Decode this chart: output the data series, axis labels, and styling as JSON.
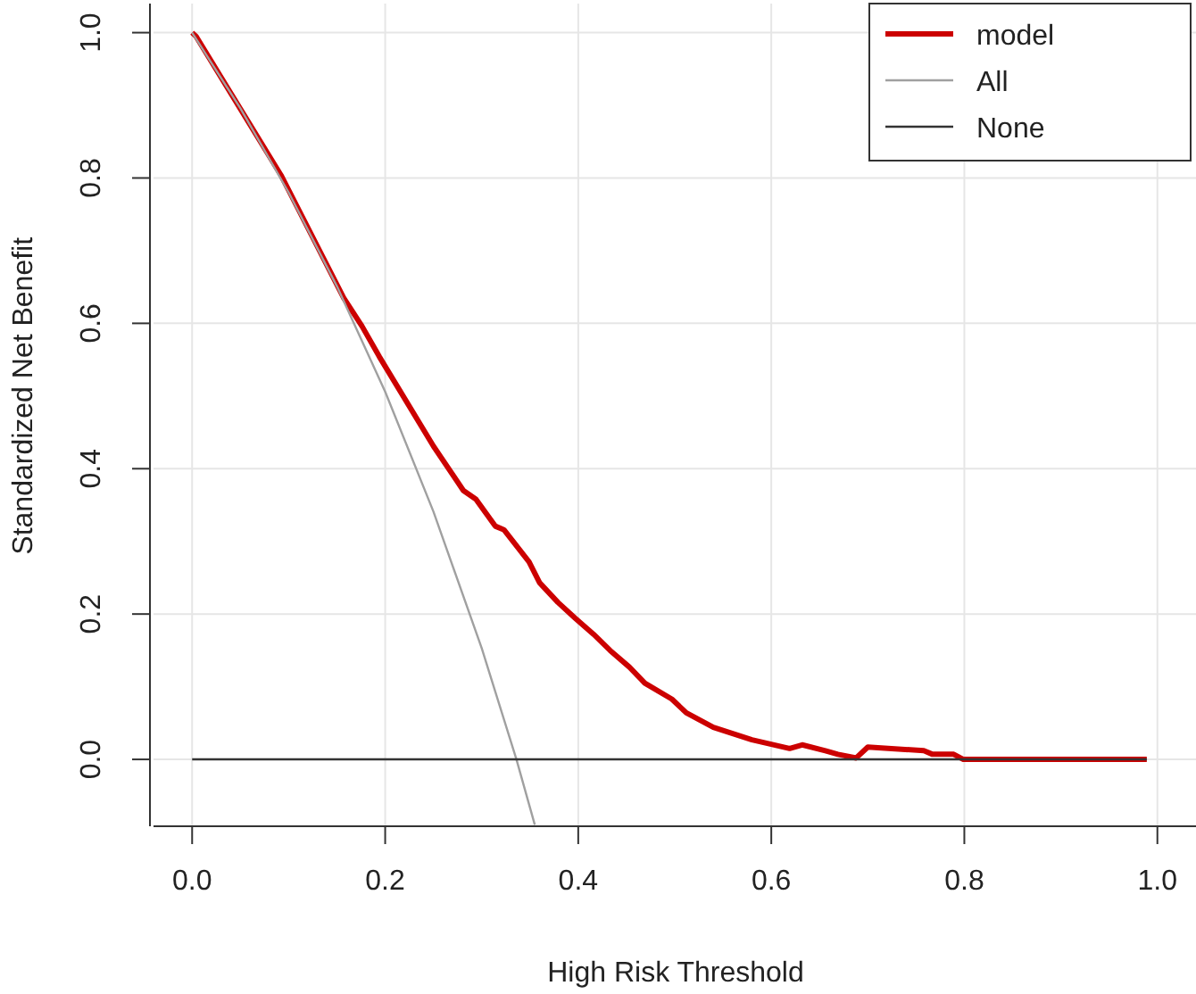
{
  "chart_data": {
    "type": "line",
    "xlabel": "High Risk Threshold",
    "ylabel": "Standardized Net Benefit",
    "xlim": [
      -0.04,
      1.04
    ],
    "ylim": [
      -0.092,
      1.04
    ],
    "xticks": [
      {
        "value": 0,
        "label": "0.0"
      },
      0.2,
      0.4,
      0.6,
      0.8,
      {
        "value": 1,
        "label": "1.0"
      }
    ],
    "yticks": [
      {
        "value": 0,
        "label": "0.0"
      },
      0.2,
      0.4,
      0.6,
      0.8,
      {
        "value": 1,
        "label": "1.0"
      }
    ],
    "grid": true,
    "legend": "top right",
    "line_style": "solid",
    "marker": "none",
    "series": [
      {
        "name": "model",
        "color": "#cc0000",
        "x": [
          0,
          0.004,
          0.092,
          0.157,
          0.176,
          0.194,
          0.25,
          0.281,
          0.294,
          0.314,
          0.323,
          0.349,
          0.36,
          0.379,
          0.397,
          0.416,
          0.433,
          0.453,
          0.469,
          0.497,
          0.512,
          0.54,
          0.58,
          0.619,
          0.632,
          0.656,
          0.669,
          0.688,
          0.7,
          0.758,
          0.767,
          0.789,
          0.799,
          0.989
        ],
        "values": [
          1,
          0.995,
          0.804,
          0.635,
          0.596,
          0.554,
          0.431,
          0.37,
          0.358,
          0.321,
          0.316,
          0.272,
          0.243,
          0.216,
          0.194,
          0.172,
          0.15,
          0.127,
          0.105,
          0.083,
          0.064,
          0.044,
          0.027,
          0.015,
          0.02,
          0.012,
          0.007,
          0.002,
          0.017,
          0.012,
          0.007,
          0.007,
          0,
          0
        ]
      },
      {
        "name": "All",
        "color": "#a0a0a0",
        "x": [
          0,
          0.05,
          0.1,
          0.15,
          0.2,
          0.25,
          0.3,
          0.336,
          0.355
        ],
        "values": [
          1,
          0.896,
          0.78,
          0.651,
          0.506,
          0.341,
          0.153,
          0,
          -0.09
        ]
      },
      {
        "name": "None",
        "color": "#333333",
        "x": [
          0,
          0.989
        ],
        "values": [
          0,
          0
        ]
      }
    ]
  }
}
